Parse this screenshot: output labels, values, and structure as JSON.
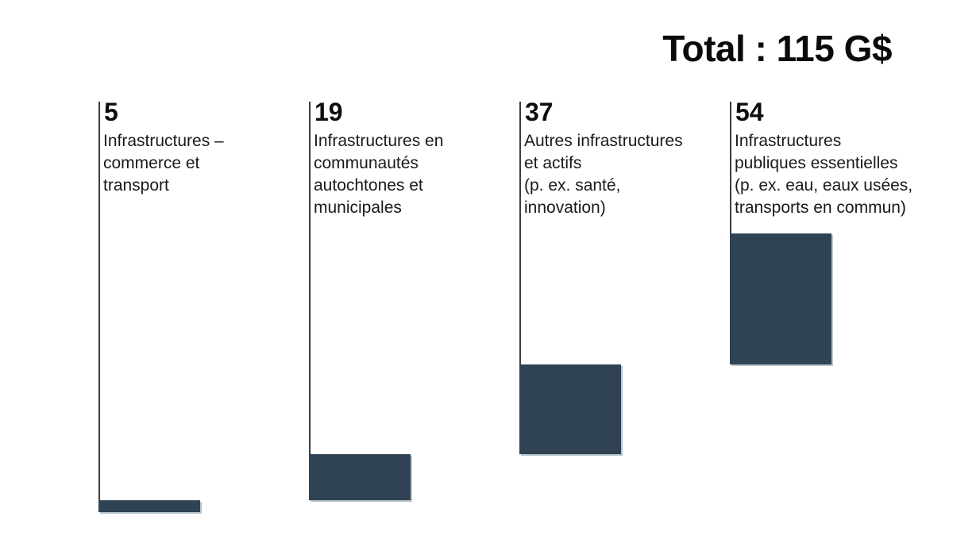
{
  "chart_data": {
    "type": "bar",
    "variant": "waterfall",
    "title": "Total : 115 G$",
    "unit": "G$",
    "total_value": 115,
    "categories": [
      "Infrastructures – commerce et transport",
      "Infrastructures en communautés autochtones et municipales",
      "Autres infrastructures et actifs (p. ex. santé, innovation)",
      "Infrastructures publiques essentielles (p. ex. eau, eaux usées, transports en commun)"
    ],
    "values": [
      5,
      19,
      37,
      54
    ],
    "ylim": [
      0,
      115
    ],
    "grid": false,
    "legend": false,
    "bar_color": "#2f4354",
    "bar_edge_highlight": "#b9c7cf",
    "guide_line_color": "#3d3d3d",
    "background_color": "#ffffff",
    "columns": [
      {
        "value_label": "5",
        "label": "Infrastructures –\ncommerce et\ntransport"
      },
      {
        "value_label": "19",
        "label": "Infrastructures en\ncommunautés\nautochtones et\nmunicipales"
      },
      {
        "value_label": "37",
        "label": "Autres infrastructures\net actifs\n(p. ex. santé,\ninnovation)"
      },
      {
        "value_label": "54",
        "label": "Infrastructures\npubliques essentielles\n(p. ex. eau, eaux usées,\ntransports en commun)"
      }
    ]
  }
}
